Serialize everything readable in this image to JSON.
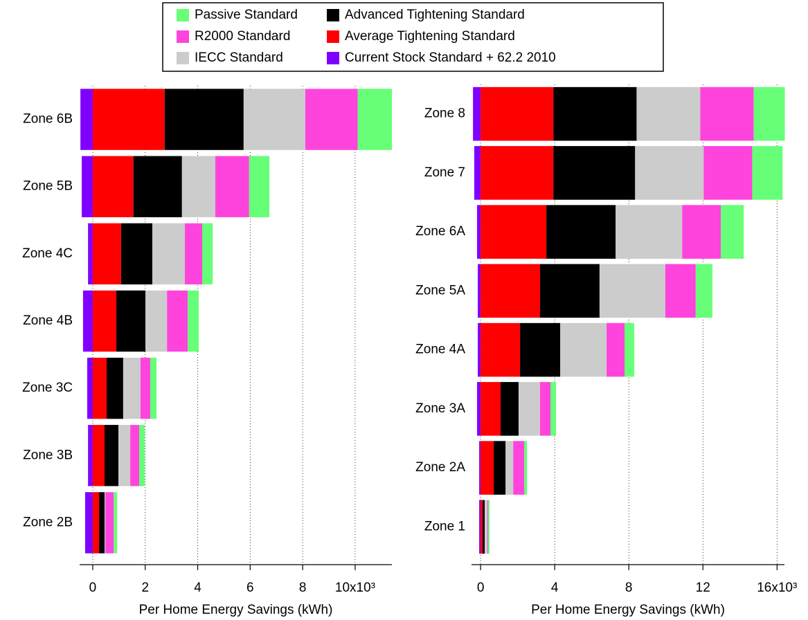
{
  "chart_data": [
    {
      "type": "bar",
      "orientation": "horizontal",
      "stacked": true,
      "xlabel": "Per Home Energy Savings (kWh)",
      "categories": [
        "Zone 6B",
        "Zone 5B",
        "Zone 4C",
        "Zone 4B",
        "Zone 3C",
        "Zone 3B",
        "Zone 2B"
      ],
      "xlim": [
        -500,
        11400
      ],
      "xticks": [
        0,
        {
          "value": 2000,
          "label": "2"
        },
        {
          "value": 4000,
          "label": "4"
        },
        {
          "value": 6000,
          "label": "6"
        },
        {
          "value": 8000,
          "label": "8"
        },
        {
          "value": 10000,
          "label": "10x10³"
        }
      ],
      "grid": true,
      "series": [
        {
          "name": "Current Stock Standard + 62.2 2010",
          "color": "#7f00ff",
          "values": [
            -470,
            -420,
            -180,
            -370,
            -210,
            -180,
            -290
          ]
        },
        {
          "name": "Average Tightening Standard",
          "color": "#ff0000",
          "values": [
            2740,
            1550,
            1080,
            900,
            530,
            450,
            240
          ]
        },
        {
          "name": "Advanced Tightening Standard",
          "color": "#000000",
          "values": [
            3010,
            1850,
            1190,
            1110,
            630,
            530,
            210
          ]
        },
        {
          "name": "IECC Standard",
          "color": "#cccccc",
          "values": [
            2350,
            1270,
            1240,
            820,
            660,
            450,
            30
          ]
        },
        {
          "name": "R2000 Standard",
          "color": "#ff44dd",
          "values": [
            2000,
            1290,
            660,
            790,
            370,
            340,
            320
          ]
        },
        {
          "name": "Passive Standard",
          "color": "#66ff77",
          "values": [
            1300,
            770,
            400,
            420,
            240,
            210,
            130
          ]
        }
      ]
    },
    {
      "type": "bar",
      "orientation": "horizontal",
      "stacked": true,
      "xlabel": "Per Home Energy Savings (kWh)",
      "categories": [
        "Zone 8",
        "Zone 7",
        "Zone 6A",
        "Zone 5A",
        "Zone 4A",
        "Zone 3A",
        "Zone 2A",
        "Zone 1"
      ],
      "xlim": [
        -490,
        16400
      ],
      "xticks": [
        0,
        {
          "value": 4000,
          "label": "4"
        },
        {
          "value": 8000,
          "label": "8"
        },
        {
          "value": 12000,
          "label": "12"
        },
        {
          "value": 16000,
          "label": "16x10³"
        }
      ],
      "grid": true,
      "series": [
        {
          "color": "#7f00ff",
          "values": [
            -410,
            -340,
            -190,
            -150,
            -150,
            -190,
            -75,
            -75
          ]
        },
        {
          "color": "#ff0000",
          "values": [
            3930,
            3930,
            3550,
            3210,
            2130,
            1080,
            710,
            110
          ]
        },
        {
          "color": "#000000",
          "values": [
            4490,
            4410,
            3740,
            3210,
            2170,
            970,
            640,
            110
          ]
        },
        {
          "color": "#cccccc",
          "values": [
            3440,
            3700,
            3590,
            3550,
            2500,
            1160,
            410,
            150
          ]
        },
        {
          "color": "#ff44dd",
          "values": [
            2880,
            2620,
            2090,
            1640,
            970,
            560,
            600,
            40
          ]
        },
        {
          "color": "#66ff77",
          "values": [
            1680,
            1640,
            1230,
            900,
            520,
            300,
            150,
            70
          ]
        }
      ]
    }
  ]
}
